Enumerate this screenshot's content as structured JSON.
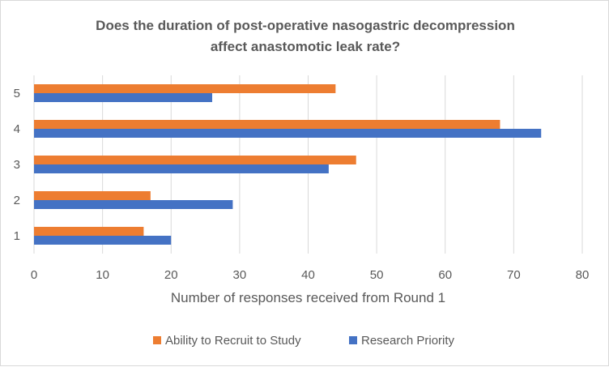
{
  "chart_data": {
    "type": "bar",
    "orientation": "horizontal",
    "title_lines": [
      "Does the duration of post-operative nasogastric decompression",
      "affect anastomotic leak rate?"
    ],
    "categories": [
      "1",
      "2",
      "3",
      "4",
      "5"
    ],
    "series": [
      {
        "name": "Research Priority",
        "color": "#4472c4",
        "values": [
          20,
          29,
          43,
          74,
          26
        ]
      },
      {
        "name": "Ability to Recruit to Study",
        "color": "#ed7d31",
        "values": [
          16,
          17,
          47,
          68,
          44
        ]
      }
    ],
    "xlabel": "Number of responses received from Round 1",
    "ylabel": "",
    "xlim": [
      0,
      80
    ],
    "x_ticks": [
      "0",
      "10",
      "20",
      "30",
      "40",
      "50",
      "60",
      "70",
      "80"
    ],
    "grid": "vertical",
    "legend": {
      "position": "bottom",
      "entries": [
        "Ability to Recruit to Study",
        "Research Priority"
      ]
    }
  }
}
